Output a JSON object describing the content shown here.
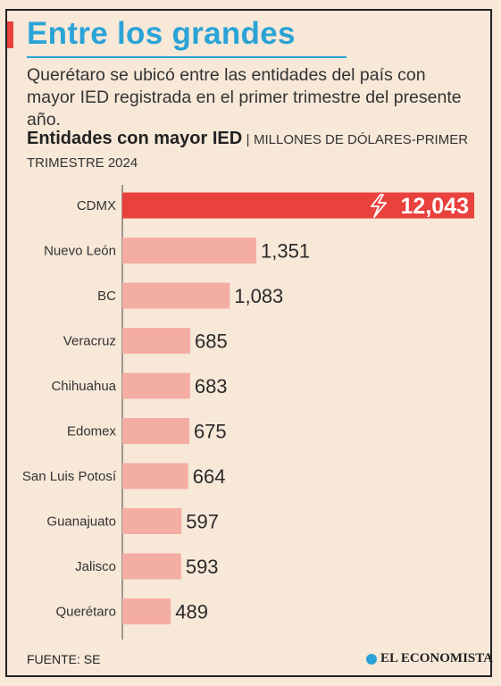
{
  "header": {
    "title": "Entre los grandes",
    "subtitle": "Querétaro se ubicó entre las entidades del país con mayor IED registrada en el primer trimestre del presente año."
  },
  "chart_heading": {
    "bold": "Entidades con mayor IED",
    "separator": "|",
    "unit": "MILLONES DE DÓLARES-PRIMER TRIMESTRE 2024"
  },
  "footer": {
    "source": "FUENTE: SE",
    "brand": "EL ECONOMISTA"
  },
  "colors": {
    "highlight": "#e9413c",
    "bar": "#f4ada3",
    "title": "#2aa3d6"
  },
  "chart_data": {
    "type": "bar",
    "orientation": "horizontal",
    "categories": [
      "CDMX",
      "Nuevo León",
      "BC",
      "Veracruz",
      "Chihuahua",
      "Edomex",
      "San Luis Potosí",
      "Guanajuato",
      "Jalisco",
      "Querétaro"
    ],
    "values": [
      12043,
      1351,
      1083,
      685,
      683,
      675,
      664,
      597,
      593,
      489
    ],
    "value_labels": [
      "12,043",
      "1,351",
      "1,083",
      "685",
      "683",
      "675",
      "664",
      "597",
      "593",
      "489"
    ],
    "title": "Entidades con mayor IED",
    "unit": "MILLONES DE DÓLARES-PRIMER TRIMESTRE 2024",
    "highlight_index": 0,
    "highlight_icon": "lightning-bolt-icon",
    "grid": false
  }
}
